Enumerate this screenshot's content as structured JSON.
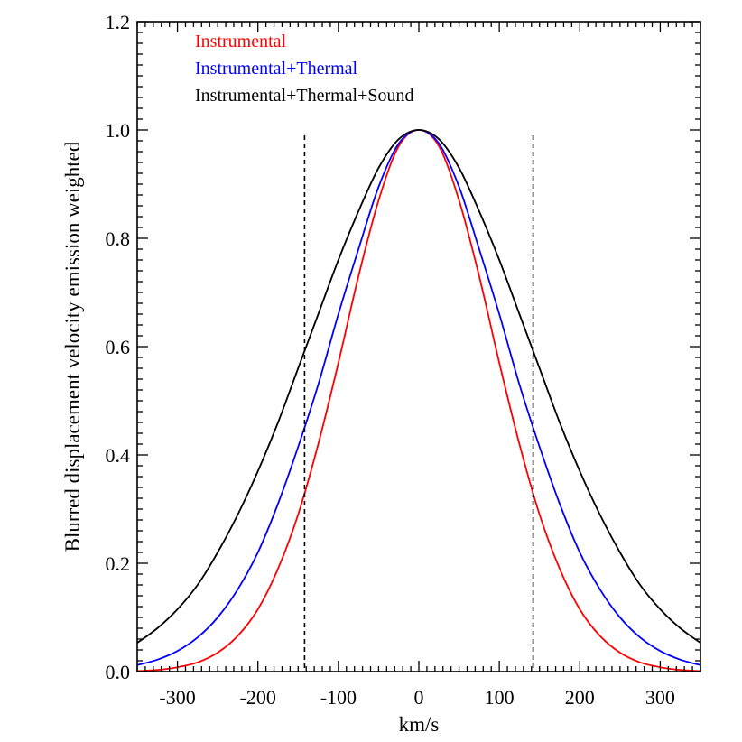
{
  "chart_data": {
    "type": "line",
    "xlabel": "km/s",
    "ylabel": "Blurred displacement velocity emission weighted",
    "xlim": [
      -350,
      350
    ],
    "ylim": [
      0,
      1.2
    ],
    "x_ticks": [
      -300,
      -200,
      -100,
      0,
      100,
      200,
      300
    ],
    "x_tick_labels": [
      "-300",
      "-200",
      "-100",
      "0",
      "100",
      "200",
      "300"
    ],
    "y_ticks": [
      0,
      0.2,
      0.4,
      0.6,
      0.8,
      1.0,
      1.2
    ],
    "y_tick_labels": [
      "0.0",
      "0.2",
      "0.4",
      "0.6",
      "0.8",
      "1.0",
      "1.2"
    ],
    "grid": false,
    "legend_position": "top-left",
    "vertical_lines": [
      {
        "x": -142,
        "y_top": 0.99,
        "style": "dashed"
      },
      {
        "x": 142,
        "y_top": 0.99,
        "style": "dashed"
      }
    ],
    "series": [
      {
        "name": "Instrumental",
        "color": "#ff0000",
        "x": [
          -350,
          -325,
          -300,
          -275,
          -250,
          -225,
          -200,
          -175,
          -150,
          -125,
          -100,
          -75,
          -50,
          -25,
          0,
          25,
          50,
          75,
          100,
          125,
          150,
          175,
          200,
          225,
          250,
          275,
          300,
          325,
          350
        ],
        "y": [
          0.001,
          0.003,
          0.008,
          0.017,
          0.035,
          0.066,
          0.115,
          0.19,
          0.29,
          0.42,
          0.57,
          0.73,
          0.87,
          0.97,
          1.0,
          0.97,
          0.87,
          0.73,
          0.57,
          0.42,
          0.29,
          0.19,
          0.115,
          0.066,
          0.035,
          0.017,
          0.008,
          0.003,
          0.001
        ]
      },
      {
        "name": "Instrumental+Thermal",
        "color": "#0000ff",
        "x": [
          -350,
          -325,
          -300,
          -275,
          -250,
          -225,
          -200,
          -175,
          -150,
          -125,
          -100,
          -75,
          -50,
          -25,
          0,
          25,
          50,
          75,
          100,
          125,
          150,
          175,
          200,
          225,
          250,
          275,
          300,
          325,
          350
        ],
        "y": [
          0.012,
          0.022,
          0.038,
          0.063,
          0.1,
          0.152,
          0.22,
          0.31,
          0.415,
          0.53,
          0.66,
          0.78,
          0.895,
          0.975,
          1.0,
          0.975,
          0.895,
          0.78,
          0.66,
          0.53,
          0.415,
          0.31,
          0.22,
          0.152,
          0.1,
          0.063,
          0.038,
          0.022,
          0.012
        ]
      },
      {
        "name": "Instrumental+Thermal+Sound",
        "color": "#000000",
        "x": [
          -350,
          -325,
          -300,
          -275,
          -250,
          -225,
          -200,
          -175,
          -150,
          -125,
          -100,
          -75,
          -50,
          -25,
          0,
          25,
          50,
          75,
          100,
          125,
          150,
          175,
          200,
          225,
          250,
          275,
          300,
          325,
          350
        ],
        "y": [
          0.053,
          0.08,
          0.115,
          0.16,
          0.22,
          0.29,
          0.37,
          0.46,
          0.56,
          0.66,
          0.76,
          0.85,
          0.93,
          0.983,
          1.0,
          0.983,
          0.93,
          0.85,
          0.76,
          0.66,
          0.56,
          0.46,
          0.37,
          0.29,
          0.22,
          0.16,
          0.115,
          0.08,
          0.053
        ]
      }
    ]
  }
}
